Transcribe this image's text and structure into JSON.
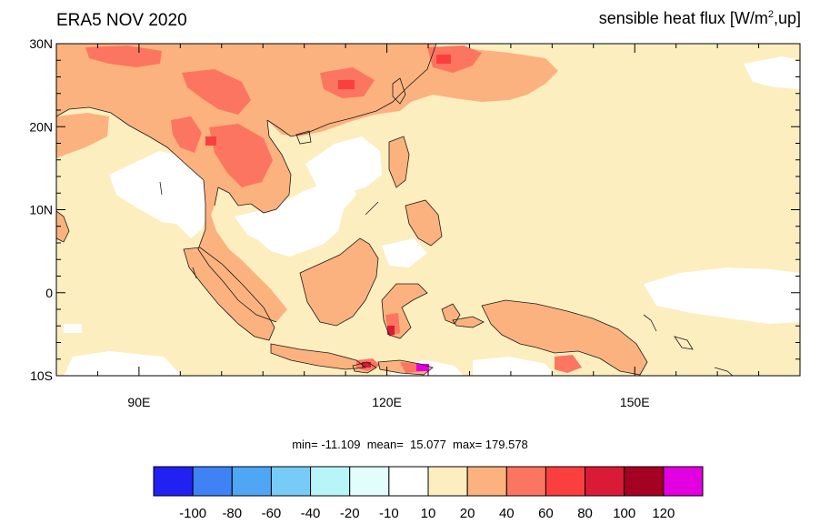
{
  "title": {
    "left": "ERA5 NOV 2020",
    "right_prefix": "sensible heat flux [W/m",
    "right_sup": "2",
    "right_suffix": ",up]"
  },
  "stats": {
    "text": "min= -11.109  mean=  15.077  max= 179.578"
  },
  "map": {
    "lon_range": [
      80,
      170
    ],
    "lat_range": [
      -10,
      30
    ],
    "lat_ticks": [
      {
        "value": 30,
        "label": "30N"
      },
      {
        "value": 20,
        "label": "20N"
      },
      {
        "value": 10,
        "label": "10N"
      },
      {
        "value": 0,
        "label": "0"
      },
      {
        "value": -10,
        "label": "10S"
      }
    ],
    "lon_ticks": [
      {
        "value": 90,
        "label": "90E"
      },
      {
        "value": 120,
        "label": "120E"
      },
      {
        "value": 150,
        "label": "150E"
      }
    ],
    "background_color": "#fdeec0",
    "land_color": "#fcb27e",
    "hot_color": "#fc7560",
    "coast_color": "#1a1a1a"
  },
  "colorbar": {
    "colors": [
      "#2121f4",
      "#3e82f5",
      "#4fa6f5",
      "#76ccf7",
      "#b7f5f8",
      "#e1fdfc",
      "#ffffff",
      "#fdeec0",
      "#fcb27e",
      "#fc7560",
      "#fb3f3f",
      "#d91b35",
      "#a50123",
      "#e200e0"
    ],
    "labels": [
      "-100",
      "-80",
      "-60",
      "-40",
      "-20",
      "-10",
      "10",
      "20",
      "40",
      "60",
      "80",
      "100",
      "120"
    ]
  }
}
